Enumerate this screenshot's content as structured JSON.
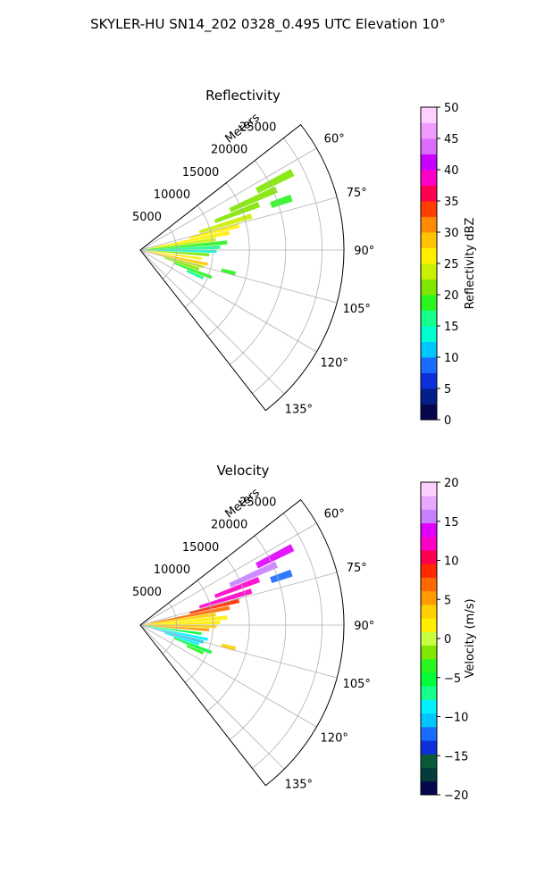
{
  "figure": {
    "suptitle": "SKYLER-HU  SN14_202  0328_0.495 UTC Elevation 10°"
  },
  "chart_data": [
    {
      "type": "heatmap",
      "projection": "polar-sector",
      "title": "Reflectivity",
      "radial_label": "Meters",
      "theta_range_deg": [
        52,
        142
      ],
      "r_max": 28000,
      "radial_ticks": [
        5000,
        10000,
        15000,
        20000,
        25000
      ],
      "radial_tick_labels": [
        "5000",
        "10000",
        "15000",
        "20000",
        "25000"
      ],
      "angle_ticks": [
        60,
        75,
        90,
        105,
        120,
        135
      ],
      "angle_tick_labels": [
        "60°",
        "75°",
        "90°",
        "105°",
        "120°",
        "135°"
      ],
      "grid": true,
      "colorbar": {
        "label": "Reflectivity dBZ",
        "vmin": 0,
        "vmax": 50,
        "ticks": [
          0,
          5,
          10,
          15,
          20,
          25,
          30,
          35,
          40,
          45,
          50
        ],
        "tick_labels": [
          "0",
          "5",
          "10",
          "15",
          "20",
          "25",
          "30",
          "35",
          "40",
          "45",
          "50"
        ],
        "colors": [
          "#06064f",
          "#061e8a",
          "#0b2fd8",
          "#1a6bff",
          "#00c6ff",
          "#00ffd0",
          "#15ff8c",
          "#2bf51e",
          "#7fe600",
          "#c8f000",
          "#ffee00",
          "#ffc300",
          "#ff8a00",
          "#ff3d00",
          "#ff0050",
          "#ff00c8",
          "#c800ff",
          "#d96cff",
          "#f09cff",
          "#ffd0ff"
        ]
      },
      "echoes": [
        {
          "theta": 63,
          "r0": 18000,
          "r1": 23500,
          "value": 20
        },
        {
          "theta": 66,
          "r0": 13500,
          "r1": 20500,
          "value": 21
        },
        {
          "theta": 69,
          "r0": 11000,
          "r1": 17500,
          "value": 22
        },
        {
          "theta": 71,
          "r0": 19000,
          "r1": 22000,
          "value": 18
        },
        {
          "theta": 73,
          "r0": 8500,
          "r1": 16000,
          "value": 23
        },
        {
          "theta": 76,
          "r0": 7000,
          "r1": 14000,
          "value": 25
        },
        {
          "theta": 79,
          "r0": 1500,
          "r1": 12500,
          "value": 26
        },
        {
          "theta": 82,
          "r0": 1000,
          "r1": 10500,
          "value": 24
        },
        {
          "theta": 85,
          "r0": 500,
          "r1": 12000,
          "value": 19
        },
        {
          "theta": 88,
          "r0": 500,
          "r1": 11000,
          "value": 17
        },
        {
          "theta": 91,
          "r0": 500,
          "r1": 10500,
          "value": 14
        },
        {
          "theta": 94,
          "r0": 500,
          "r1": 9500,
          "value": 20
        },
        {
          "theta": 98,
          "r0": 500,
          "r1": 8500,
          "value": 27
        },
        {
          "theta": 102,
          "r0": 500,
          "r1": 9500,
          "value": 28
        },
        {
          "theta": 105,
          "r0": 2000,
          "r1": 9000,
          "value": 24
        },
        {
          "theta": 108,
          "r0": 3500,
          "r1": 8500,
          "value": 21
        },
        {
          "theta": 111,
          "r0": 5000,
          "r1": 10500,
          "value": 19
        },
        {
          "theta": 114,
          "r0": 7000,
          "r1": 9500,
          "value": 17
        },
        {
          "theta": 104,
          "r0": 11500,
          "r1": 13500,
          "value": 19
        }
      ]
    },
    {
      "type": "heatmap",
      "projection": "polar-sector",
      "title": "Velocity",
      "radial_label": "Meters",
      "theta_range_deg": [
        52,
        142
      ],
      "r_max": 28000,
      "radial_ticks": [
        5000,
        10000,
        15000,
        20000,
        25000
      ],
      "radial_tick_labels": [
        "5000",
        "10000",
        "15000",
        "20000",
        "25000"
      ],
      "angle_ticks": [
        60,
        75,
        90,
        105,
        120,
        135
      ],
      "angle_tick_labels": [
        "60°",
        "75°",
        "90°",
        "105°",
        "120°",
        "135°"
      ],
      "grid": true,
      "colorbar": {
        "label": "Velocity (m/s)",
        "vmin": -20,
        "vmax": 20,
        "ticks": [
          -20,
          -15,
          -10,
          -5,
          0,
          5,
          10,
          15,
          20
        ],
        "tick_labels": [
          "−20",
          "−15",
          "−10",
          "−5",
          "0",
          "5",
          "10",
          "15",
          "20"
        ],
        "colors": [
          "#06064f",
          "#063b3b",
          "#0a5a3a",
          "#0b2fd8",
          "#1a6bff",
          "#00c6ff",
          "#00f0ff",
          "#15ff8c",
          "#00ff3a",
          "#2bf51e",
          "#7fe600",
          "#c8ff40",
          "#ffee00",
          "#ffd000",
          "#ff9a00",
          "#ff6a00",
          "#ff2a00",
          "#ff0050",
          "#ff00c8",
          "#e000ff",
          "#c880ff",
          "#e8a8ff",
          "#ffd0ff"
        ]
      },
      "echoes": [
        {
          "theta": 63,
          "r0": 18000,
          "r1": 23500,
          "value": 14
        },
        {
          "theta": 66,
          "r0": 13500,
          "r1": 20500,
          "value": 15
        },
        {
          "theta": 69,
          "r0": 11000,
          "r1": 17500,
          "value": 13
        },
        {
          "theta": 71,
          "r0": 19000,
          "r1": 22000,
          "value": -12
        },
        {
          "theta": 73,
          "r0": 8500,
          "r1": 16000,
          "value": 12
        },
        {
          "theta": 76,
          "r0": 7000,
          "r1": 14000,
          "value": 9
        },
        {
          "theta": 79,
          "r0": 1500,
          "r1": 12500,
          "value": 7
        },
        {
          "theta": 82,
          "r0": 1000,
          "r1": 10500,
          "value": 4
        },
        {
          "theta": 85,
          "r0": 500,
          "r1": 12000,
          "value": 2
        },
        {
          "theta": 88,
          "r0": 500,
          "r1": 11000,
          "value": 1
        },
        {
          "theta": 91,
          "r0": 500,
          "r1": 10500,
          "value": 3
        },
        {
          "theta": 94,
          "r0": 500,
          "r1": 9500,
          "value": 6
        },
        {
          "theta": 98,
          "r0": 500,
          "r1": 8500,
          "value": -6
        },
        {
          "theta": 102,
          "r0": 500,
          "r1": 9500,
          "value": -9
        },
        {
          "theta": 105,
          "r0": 2000,
          "r1": 9000,
          "value": -11
        },
        {
          "theta": 108,
          "r0": 3500,
          "r1": 8500,
          "value": -8
        },
        {
          "theta": 111,
          "r0": 5000,
          "r1": 10500,
          "value": -5
        },
        {
          "theta": 114,
          "r0": 7000,
          "r1": 9500,
          "value": -3
        },
        {
          "theta": 104,
          "r0": 11500,
          "r1": 13500,
          "value": 3
        }
      ]
    }
  ]
}
